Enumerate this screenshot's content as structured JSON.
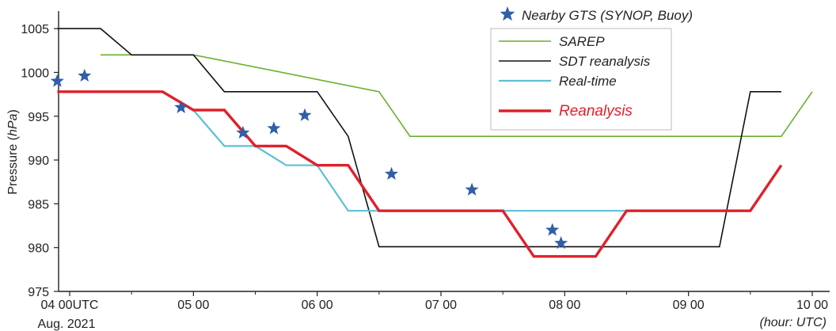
{
  "chart_data": {
    "type": "line",
    "ylabel_main": "Pressure",
    "ylabel_unit": "hPa",
    "xlabel_note": "(hour: UTC)",
    "ylim": [
      975,
      1007
    ],
    "xlim": [
      -0.1,
      6.1
    ],
    "x_ticks": [
      {
        "value": 0,
        "label": "04 00UTC",
        "sublabel": "Aug. 2021"
      },
      {
        "value": 1,
        "label": "05 00"
      },
      {
        "value": 2,
        "label": "06 00"
      },
      {
        "value": 3,
        "label": "07 00"
      },
      {
        "value": 4,
        "label": "08 00"
      },
      {
        "value": 5,
        "label": "09 00"
      },
      {
        "value": 6,
        "label": "10 00"
      }
    ],
    "y_ticks": [
      975,
      980,
      985,
      990,
      995,
      1000,
      1005
    ],
    "grid": false,
    "legend_position": "top-right",
    "series": [
      {
        "name": "SAREP",
        "color": "#6aaf2e",
        "width": 1.6,
        "points": [
          [
            0.25,
            1002
          ],
          [
            1.0,
            1002
          ],
          [
            2.5,
            997.8
          ],
          [
            2.75,
            992.7
          ],
          [
            5.75,
            992.7
          ],
          [
            6.0,
            997.8
          ]
        ]
      },
      {
        "name": "SDT reanalysis",
        "color": "#111111",
        "width": 1.6,
        "points": [
          [
            -0.1,
            1005
          ],
          [
            0.25,
            1005
          ],
          [
            0.5,
            1002
          ],
          [
            1.0,
            1002
          ],
          [
            1.25,
            997.8
          ],
          [
            2.0,
            997.8
          ],
          [
            2.25,
            992.7
          ],
          [
            2.5,
            980.1
          ],
          [
            5.25,
            980.1
          ],
          [
            5.5,
            997.8
          ],
          [
            5.75,
            997.8
          ]
        ]
      },
      {
        "name": "Real-time",
        "color": "#5bc0d6",
        "width": 2.2,
        "points": [
          [
            -0.1,
            997.8
          ],
          [
            0.75,
            997.8
          ],
          [
            1.0,
            995.7
          ],
          [
            1.25,
            991.6
          ],
          [
            1.5,
            991.6
          ],
          [
            1.75,
            989.4
          ],
          [
            2.0,
            989.4
          ],
          [
            2.25,
            984.2
          ],
          [
            4.5,
            984.2
          ]
        ]
      },
      {
        "name": "Reanalysis",
        "color": "#e0202a",
        "width": 3.4,
        "label_color": "#e0202a",
        "points": [
          [
            -0.1,
            997.8
          ],
          [
            0.75,
            997.8
          ],
          [
            1.0,
            995.7
          ],
          [
            1.25,
            995.7
          ],
          [
            1.5,
            991.6
          ],
          [
            1.75,
            991.6
          ],
          [
            2.0,
            989.4
          ],
          [
            2.25,
            989.4
          ],
          [
            2.5,
            984.2
          ],
          [
            3.5,
            984.2
          ],
          [
            3.75,
            979
          ],
          [
            4.25,
            979
          ],
          [
            4.5,
            984.2
          ],
          [
            5.5,
            984.2
          ],
          [
            5.75,
            989.4
          ]
        ]
      }
    ],
    "markers": {
      "name": "Nearby GTS (SYNOP, Buoy)",
      "color": "#2f5fa8",
      "points": [
        [
          -0.1,
          999.0
        ],
        [
          0.12,
          999.6
        ],
        [
          0.9,
          996.0
        ],
        [
          1.4,
          993.1
        ],
        [
          1.65,
          993.6
        ],
        [
          1.9,
          995.1
        ],
        [
          2.6,
          988.4
        ],
        [
          3.25,
          986.6
        ],
        [
          3.9,
          982.0
        ],
        [
          3.97,
          980.5
        ]
      ]
    }
  }
}
